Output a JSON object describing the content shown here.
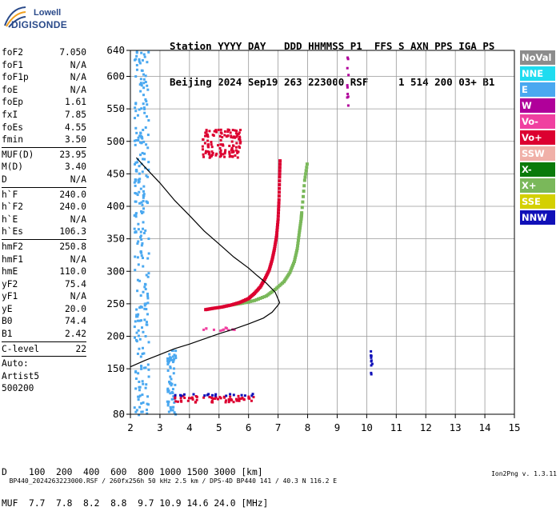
{
  "logo": {
    "top": "Lowell",
    "bottom": "DIGISONDE"
  },
  "header": {
    "line1": "Station YYYY DAY   DDD HHMMSS P1  FFS S AXN PPS IGA PS",
    "line2": "Beijing 2024 Sep19 263 223000 RSF     1 514 200 03+ B1"
  },
  "params_group1": [
    {
      "name": "foF2",
      "value": "7.050"
    },
    {
      "name": "foF1",
      "value": "N/A"
    },
    {
      "name": "foF1p",
      "value": "N/A"
    },
    {
      "name": "foE",
      "value": "N/A"
    },
    {
      "name": "foEp",
      "value": "1.61"
    },
    {
      "name": "fxI",
      "value": "7.85"
    },
    {
      "name": "foEs",
      "value": "4.55"
    },
    {
      "name": "fmin",
      "value": "3.50"
    }
  ],
  "params_group2": [
    {
      "name": "MUF(D)",
      "value": "23.95"
    },
    {
      "name": "M(D)",
      "value": "3.40"
    },
    {
      "name": "D",
      "value": "N/A"
    }
  ],
  "params_group3": [
    {
      "name": "h`F",
      "value": "240.0"
    },
    {
      "name": "h`F2",
      "value": "240.0"
    },
    {
      "name": "h`E",
      "value": "N/A"
    },
    {
      "name": "h`Es",
      "value": "106.3"
    }
  ],
  "params_group4": [
    {
      "name": "hmF2",
      "value": "250.8"
    },
    {
      "name": "hmF1",
      "value": "N/A"
    },
    {
      "name": "hmE",
      "value": "110.0"
    },
    {
      "name": "yF2",
      "value": "75.4"
    },
    {
      "name": "yF1",
      "value": "N/A"
    },
    {
      "name": "yE",
      "value": "20.0"
    },
    {
      "name": "B0",
      "value": "74.4"
    },
    {
      "name": "B1",
      "value": "2.42"
    }
  ],
  "params_group5": [
    {
      "name": "C-level",
      "value": "22"
    }
  ],
  "auto_block": [
    "Auto:",
    "Artist5",
    "500200"
  ],
  "legend": [
    {
      "label": "NoVal",
      "color": "#8c8c8c"
    },
    {
      "label": "NNE",
      "color": "#1fdcf0"
    },
    {
      "label": "E",
      "color": "#4aa8f0"
    },
    {
      "label": "W",
      "color": "#b0009a"
    },
    {
      "label": "Vo-",
      "color": "#f040a0"
    },
    {
      "label": "Vo+",
      "color": "#dc0030"
    },
    {
      "label": "SSW",
      "color": "#f0b0a8"
    },
    {
      "label": "X-",
      "color": "#0a7a0a"
    },
    {
      "label": "X+",
      "color": "#7ab85a"
    },
    {
      "label": "SSE",
      "color": "#d4d000"
    },
    {
      "label": "NNW",
      "color": "#1010b8"
    }
  ],
  "muf_table": {
    "d_label": "D",
    "d_values": [
      "100",
      "200",
      "400",
      "600",
      "800",
      "1000",
      "1500",
      "3000"
    ],
    "d_unit": "[km]",
    "muf_label": "MUF",
    "muf_values": [
      "7.7",
      "7.8",
      "8.2",
      "8.8",
      "9.7",
      "10.9",
      "14.6",
      "24.0"
    ],
    "muf_unit": "[MHz]"
  },
  "footer": {
    "left": "BP440_2024263223000.RSF / 260fx256h 50 kHz 2.5 km / DPS-4D BP440 141 / 40.3 N 116.2 E",
    "right": "Ion2Png v. 1.3.11"
  },
  "chart_data": {
    "type": "scatter",
    "title": "",
    "xlabel": "",
    "ylabel": "",
    "xlim": [
      2,
      15
    ],
    "ylim": [
      80,
      640
    ],
    "x_ticks": [
      2,
      3,
      4,
      5,
      6,
      7,
      8,
      9,
      10,
      11,
      12,
      13,
      14,
      15
    ],
    "y_ticks": [
      80,
      150,
      200,
      250,
      300,
      350,
      400,
      450,
      500,
      550,
      600,
      640
    ],
    "grid": true,
    "profile_curve": {
      "name": "electron density profile",
      "points": [
        [
          2.0,
          153
        ],
        [
          2.5,
          163
        ],
        [
          3.0,
          172
        ],
        [
          3.5,
          181
        ],
        [
          4.0,
          188
        ],
        [
          4.5,
          196
        ],
        [
          5.0,
          204
        ],
        [
          5.5,
          211
        ],
        [
          6.0,
          219
        ],
        [
          6.5,
          228
        ],
        [
          6.8,
          237
        ],
        [
          7.0,
          248
        ],
        [
          7.05,
          252
        ],
        [
          6.9,
          268
        ],
        [
          6.6,
          282
        ],
        [
          6.3,
          293
        ],
        [
          6.0,
          305
        ],
        [
          5.5,
          322
        ],
        [
          5.0,
          342
        ],
        [
          4.5,
          362
        ],
        [
          4.0,
          386
        ],
        [
          3.5,
          409
        ],
        [
          3.0,
          436
        ],
        [
          2.5,
          460
        ],
        [
          2.2,
          475
        ]
      ]
    },
    "ordinary_trace": {
      "name": "O-mode trace (Vo+)",
      "color": "#dc0030",
      "points": [
        [
          4.55,
          241
        ],
        [
          4.8,
          243
        ],
        [
          5.1,
          245
        ],
        [
          5.4,
          248
        ],
        [
          5.7,
          252
        ],
        [
          6.0,
          258
        ],
        [
          6.2,
          266
        ],
        [
          6.4,
          276
        ],
        [
          6.55,
          288
        ],
        [
          6.7,
          302
        ],
        [
          6.8,
          318
        ],
        [
          6.88,
          335
        ],
        [
          6.95,
          355
        ],
        [
          7.0,
          380
        ],
        [
          7.03,
          410
        ],
        [
          7.05,
          445
        ],
        [
          7.07,
          475
        ]
      ]
    },
    "extraordinary_trace": {
      "name": "X-mode trace (X+)",
      "color": "#7ab85a",
      "points": [
        [
          5.4,
          248
        ],
        [
          5.8,
          251
        ],
        [
          6.2,
          255
        ],
        [
          6.6,
          262
        ],
        [
          6.9,
          272
        ],
        [
          7.2,
          284
        ],
        [
          7.4,
          298
        ],
        [
          7.55,
          315
        ],
        [
          7.65,
          335
        ],
        [
          7.72,
          360
        ],
        [
          7.78,
          380
        ],
        [
          7.8,
          390
        ],
        [
          7.9,
          440
        ],
        [
          8.0,
          470
        ]
      ]
    },
    "echo_clusters": [
      {
        "mode": "E",
        "color": "#4aa8f0",
        "x_range": [
          2.1,
          2.6
        ],
        "h_range": [
          80,
          640
        ]
      },
      {
        "mode": "E",
        "color": "#4aa8f0",
        "x_range": [
          3.2,
          3.5
        ],
        "h_range": [
          80,
          180
        ]
      },
      {
        "mode": "Vo+",
        "color": "#dc0030",
        "x_range": [
          3.4,
          6.2
        ],
        "h_range": [
          100,
          110
        ]
      },
      {
        "mode": "NNW",
        "color": "#1010b8",
        "x_range": [
          3.4,
          6.2
        ],
        "h_range": [
          110,
          113
        ]
      },
      {
        "mode": "Vo+",
        "color": "#dc0030",
        "x_range": [
          4.4,
          5.7
        ],
        "h_range": [
          475,
          520
        ]
      },
      {
        "mode": "Vo-",
        "color": "#f040a0",
        "x_range": [
          4.4,
          5.5
        ],
        "h_range": [
          210,
          215
        ]
      },
      {
        "mode": "W",
        "color": "#b0009a",
        "x_range": [
          9.3,
          9.35
        ],
        "h_range": [
          555,
          640
        ]
      },
      {
        "mode": "NNW",
        "color": "#1010b8",
        "x_range": [
          10.1,
          10.15
        ],
        "h_range": [
          140,
          180
        ]
      }
    ]
  }
}
